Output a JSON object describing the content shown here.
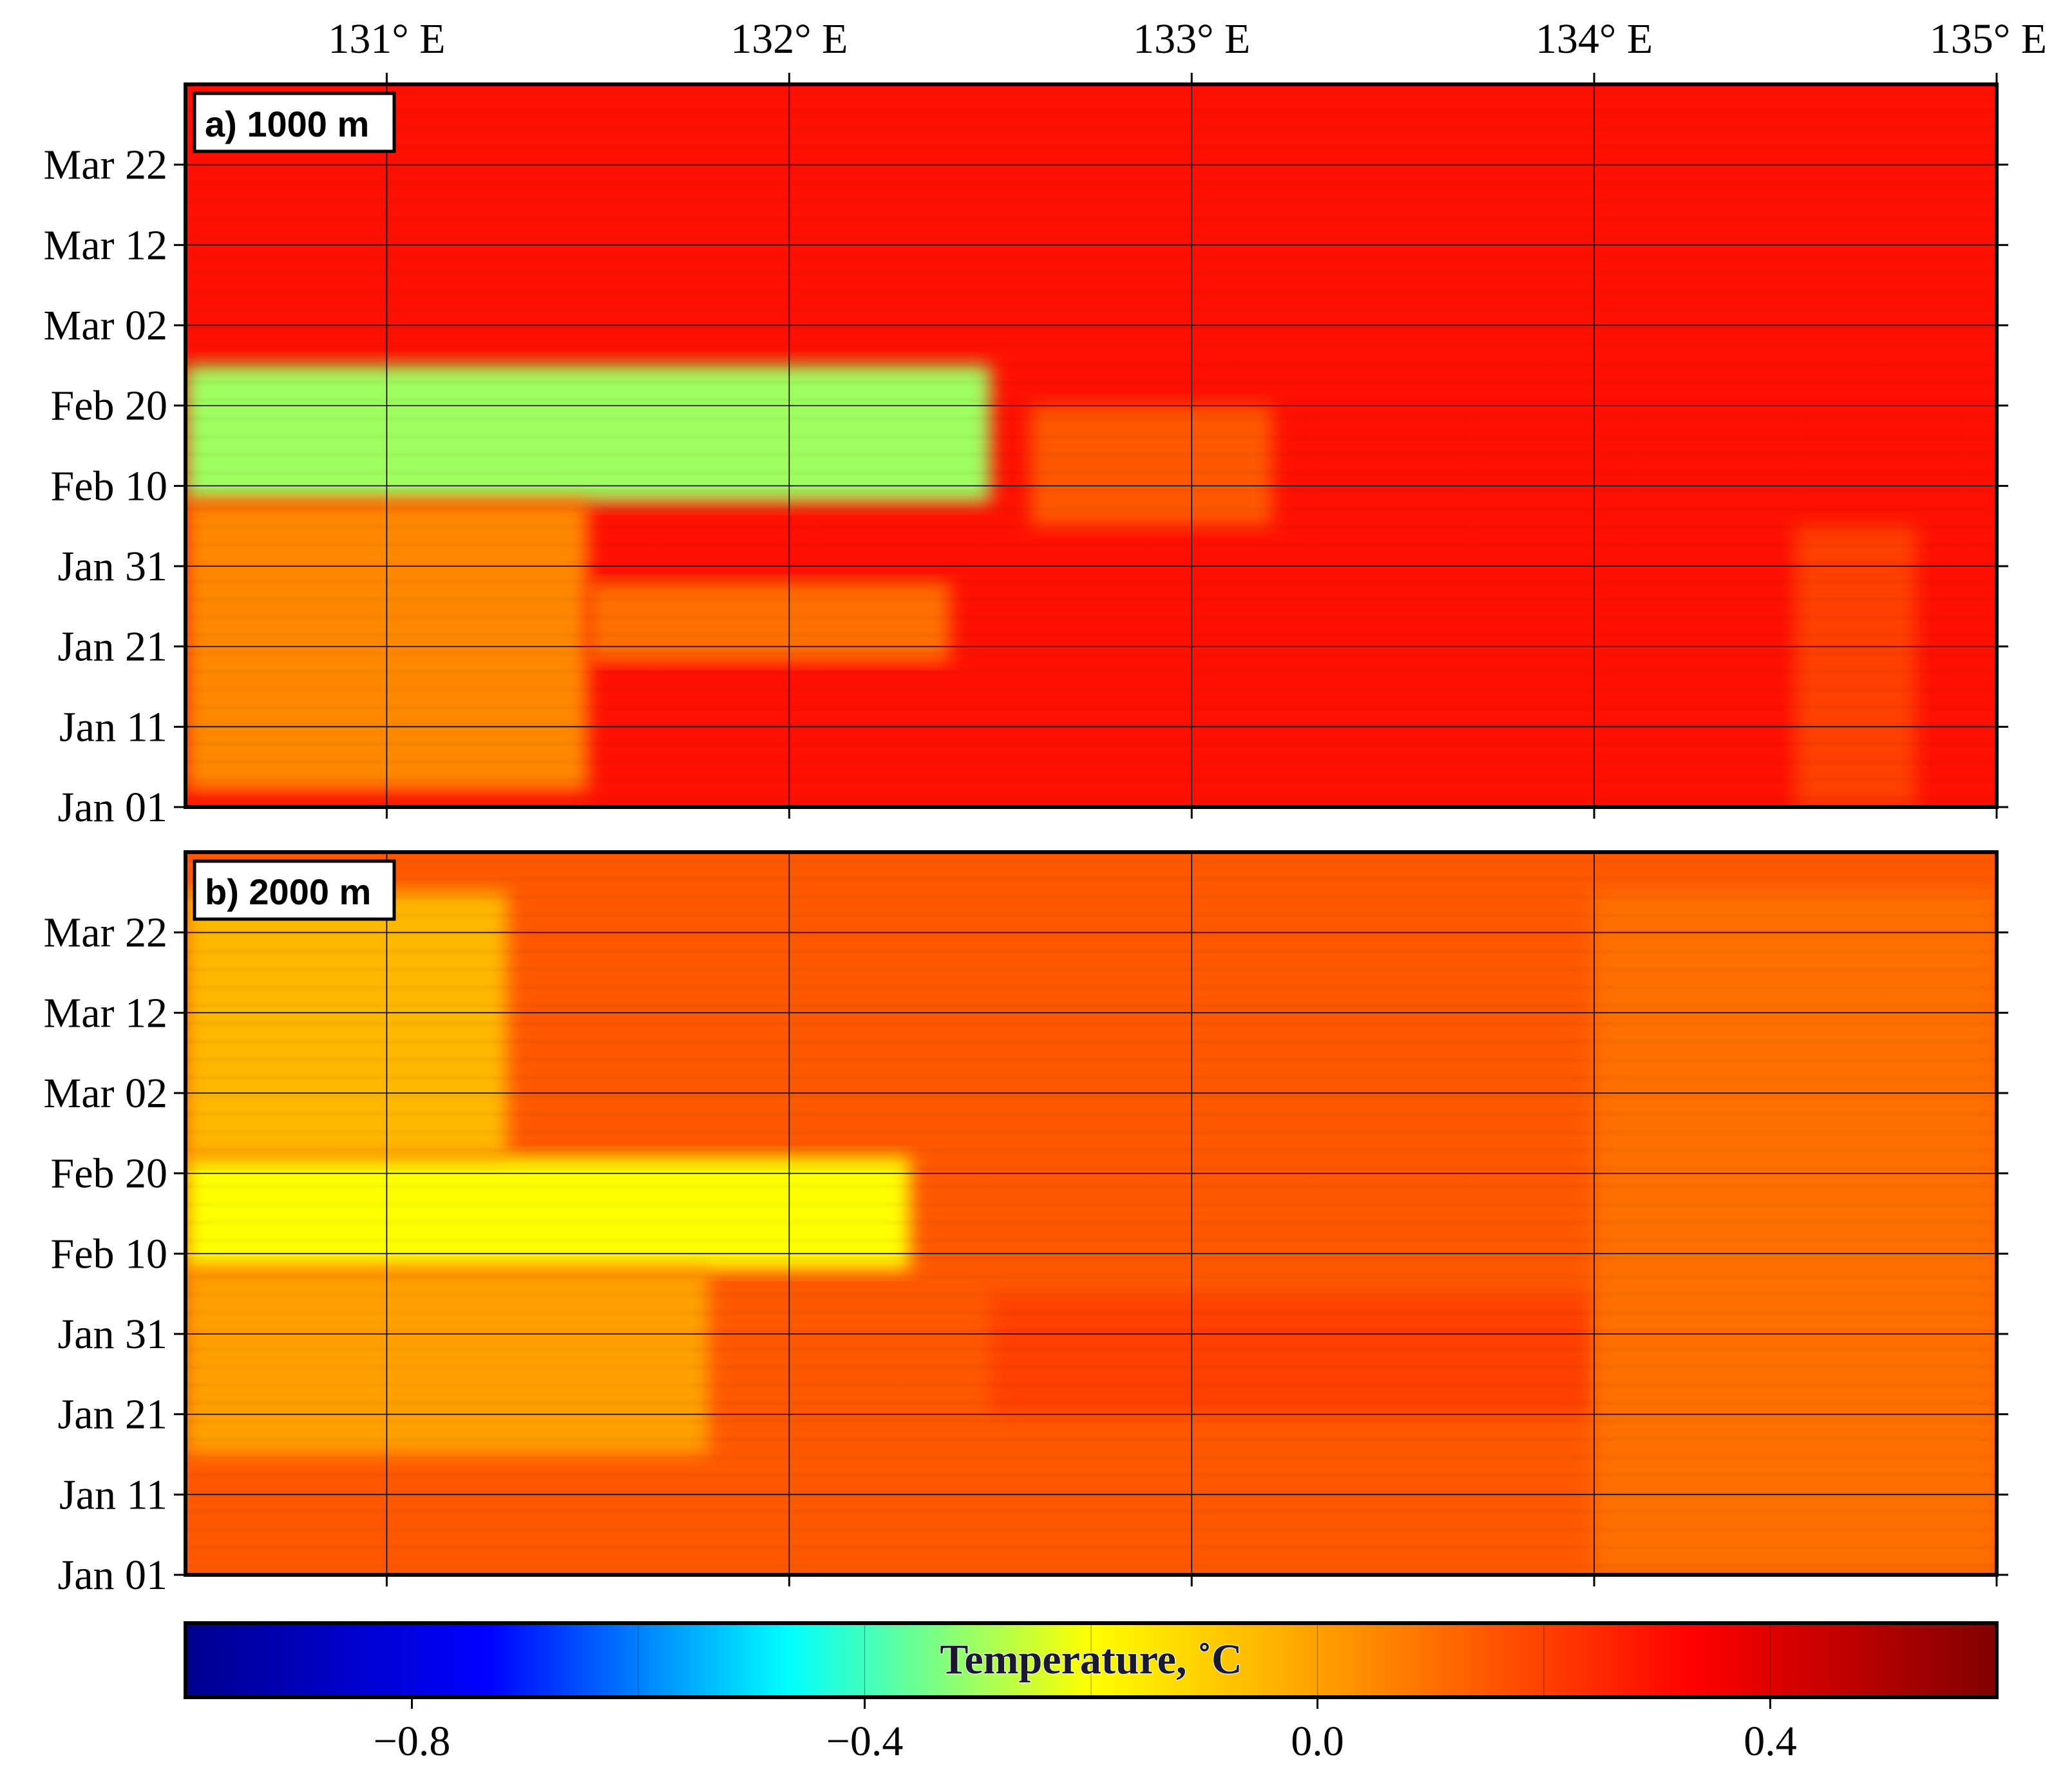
{
  "chart_data": {
    "type": "heatmap",
    "x_axis": {
      "ticks": [
        "131° E",
        "132° E",
        "133° E",
        "134° E",
        "135° E"
      ],
      "tick_values": [
        131,
        132,
        133,
        134,
        135
      ],
      "range": [
        130.5,
        135.0
      ]
    },
    "y_axis": {
      "ticks": [
        "Jan 01",
        "Jan 11",
        "Jan 21",
        "Jan 31",
        "Feb 10",
        "Feb 20",
        "Mar 02",
        "Mar 12",
        "Mar 22"
      ],
      "tick_values": [
        0,
        10,
        20,
        30,
        40,
        50,
        60,
        70,
        80
      ],
      "range": [
        0,
        90
      ]
    },
    "grid": true,
    "panels": [
      {
        "label": "a) 1000 m",
        "summary": "mostly warm (about +0.25 to +0.45 °C) with cold streaks (about −0.6 to 0.0 °C) west of 133° E between Jan 01 and Mar 12",
        "base_value": 0.3,
        "features": [
          {
            "lon": [
              130.5,
              132.5
            ],
            "time": [
              38,
              55
            ],
            "value": -0.3
          },
          {
            "lon": [
              130.5,
              131.5
            ],
            "time": [
              2,
              38
            ],
            "value": 0.05
          },
          {
            "lon": [
              131.5,
              132.4
            ],
            "time": [
              18,
              28
            ],
            "value": 0.1
          },
          {
            "lon": [
              132.6,
              133.2
            ],
            "time": [
              35,
              50
            ],
            "value": 0.15
          },
          {
            "lon": [
              134.5,
              134.8
            ],
            "time": [
              0,
              35
            ],
            "value": 0.2
          }
        ]
      },
      {
        "label": "b) 2000 m",
        "summary": "moderate anomalies (about 0.0 to +0.25 °C) with a cold tongue (about −0.2 to 0.0 °C) west of 132.5° E between Jan 11 and Mar 22",
        "base_value": 0.15,
        "features": [
          {
            "lon": [
              130.5,
              132.3
            ],
            "time": [
              38,
              52
            ],
            "value": -0.2
          },
          {
            "lon": [
              130.5,
              131.3
            ],
            "time": [
              52,
              85
            ],
            "value": -0.05
          },
          {
            "lon": [
              130.5,
              131.8
            ],
            "time": [
              15,
              38
            ],
            "value": 0.0
          },
          {
            "lon": [
              132.5,
              134.0
            ],
            "time": [
              20,
              35
            ],
            "value": 0.2
          },
          {
            "lon": [
              134.0,
              135.0
            ],
            "time": [
              0,
              85
            ],
            "value": 0.1
          }
        ]
      }
    ],
    "colorbar": {
      "label": "Temperature, ˚C",
      "range": [
        -1.0,
        0.6
      ],
      "tick_labels": [
        "−0.8",
        "−0.4",
        "0.0",
        "0.4"
      ],
      "tick_values": [
        -0.8,
        -0.4,
        0.0,
        0.4
      ],
      "colormap": "jet",
      "stops": [
        "#00008f",
        "#0000ff",
        "#00ffff",
        "#ffff00",
        "#ff8000",
        "#ff0000",
        "#800000"
      ]
    }
  }
}
